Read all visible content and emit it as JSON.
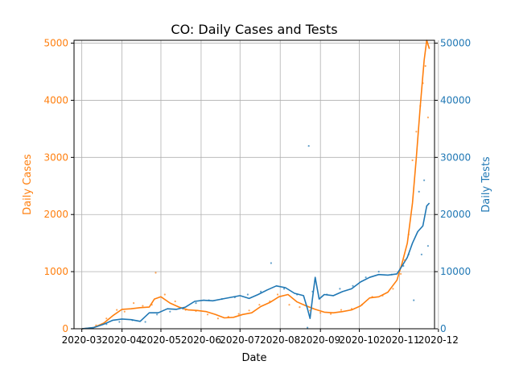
{
  "chart_data": {
    "type": "line",
    "title": "CO: Daily Cases and Tests",
    "xlabel": "Date",
    "ylabel_left": "Daily Cases",
    "ylabel_right": "Daily Tests",
    "x_ticks": [
      "2020-03",
      "2020-04",
      "2020-05",
      "2020-06",
      "2020-07",
      "2020-08",
      "2020-09",
      "2020-10",
      "2020-11",
      "2020-12"
    ],
    "xlim": [
      "2020-02-24",
      "2020-11-28"
    ],
    "ylim_left": [
      0,
      5050
    ],
    "ylim_right": [
      0,
      50500
    ],
    "y_ticks_left": [
      0,
      1000,
      2000,
      3000,
      4000,
      5000
    ],
    "y_ticks_right": [
      0,
      10000,
      20000,
      30000,
      40000,
      50000
    ],
    "grid": true,
    "colors": {
      "cases": "#ff7f0e",
      "tests": "#1f77b4"
    },
    "series": [
      {
        "role": "cases-smoothed",
        "axis": "left",
        "x": [
          "2020-03-01",
          "2020-03-10",
          "2020-03-18",
          "2020-03-25",
          "2020-04-01",
          "2020-04-08",
          "2020-04-15",
          "2020-04-22",
          "2020-04-26",
          "2020-05-01",
          "2020-05-08",
          "2020-05-15",
          "2020-05-22",
          "2020-05-29",
          "2020-06-05",
          "2020-06-12",
          "2020-06-19",
          "2020-06-26",
          "2020-07-03",
          "2020-07-10",
          "2020-07-17",
          "2020-07-24",
          "2020-07-31",
          "2020-08-07",
          "2020-08-14",
          "2020-08-21",
          "2020-08-28",
          "2020-09-04",
          "2020-09-11",
          "2020-09-18",
          "2020-09-25",
          "2020-10-02",
          "2020-10-09",
          "2020-10-16",
          "2020-10-23",
          "2020-10-30",
          "2020-11-03",
          "2020-11-07",
          "2020-11-11",
          "2020-11-14",
          "2020-11-17",
          "2020-11-20",
          "2020-11-22",
          "2020-11-24"
        ],
        "y": [
          0,
          20,
          100,
          230,
          340,
          350,
          370,
          380,
          520,
          560,
          450,
          380,
          330,
          320,
          300,
          250,
          190,
          200,
          250,
          280,
          390,
          460,
          560,
          600,
          470,
          400,
          340,
          290,
          280,
          300,
          330,
          400,
          540,
          560,
          640,
          850,
          1150,
          1500,
          2200,
          3000,
          3900,
          4700,
          5050,
          4900
        ]
      },
      {
        "role": "tests-smoothed",
        "axis": "right",
        "x": [
          "2020-03-01",
          "2020-03-10",
          "2020-03-18",
          "2020-03-25",
          "2020-04-01",
          "2020-04-08",
          "2020-04-15",
          "2020-04-22",
          "2020-04-29",
          "2020-05-06",
          "2020-05-13",
          "2020-05-20",
          "2020-05-27",
          "2020-06-03",
          "2020-06-10",
          "2020-06-17",
          "2020-06-24",
          "2020-07-01",
          "2020-07-08",
          "2020-07-15",
          "2020-07-22",
          "2020-07-29",
          "2020-08-05",
          "2020-08-12",
          "2020-08-19",
          "2020-08-22",
          "2020-08-24",
          "2020-08-26",
          "2020-08-28",
          "2020-08-31",
          "2020-09-04",
          "2020-09-11",
          "2020-09-18",
          "2020-09-25",
          "2020-10-02",
          "2020-10-09",
          "2020-10-16",
          "2020-10-23",
          "2020-10-30",
          "2020-11-03",
          "2020-11-07",
          "2020-11-11",
          "2020-11-15",
          "2020-11-19",
          "2020-11-22",
          "2020-11-24"
        ],
        "y": [
          0,
          200,
          800,
          1500,
          1700,
          1600,
          1300,
          2800,
          2800,
          3500,
          3400,
          3800,
          4800,
          5000,
          4900,
          5200,
          5500,
          5800,
          5300,
          6000,
          6800,
          7500,
          7200,
          6200,
          5800,
          3500,
          1800,
          5500,
          9000,
          5200,
          6000,
          5800,
          6500,
          7000,
          8200,
          9000,
          9500,
          9400,
          9600,
          11000,
          12500,
          15000,
          17000,
          18000,
          21500,
          22000
        ]
      },
      {
        "role": "cases-daily",
        "axis": "left",
        "x": [
          "2020-03-12",
          "2020-03-20",
          "2020-03-28",
          "2020-04-03",
          "2020-04-10",
          "2020-04-17",
          "2020-04-24",
          "2020-04-27",
          "2020-05-04",
          "2020-05-12",
          "2020-05-20",
          "2020-05-28",
          "2020-06-06",
          "2020-06-14",
          "2020-06-22",
          "2020-06-30",
          "2020-07-08",
          "2020-07-16",
          "2020-07-24",
          "2020-07-30",
          "2020-08-08",
          "2020-08-16",
          "2020-08-24",
          "2020-09-01",
          "2020-09-09",
          "2020-09-17",
          "2020-09-25",
          "2020-10-03",
          "2020-10-11",
          "2020-10-19",
          "2020-10-27",
          "2020-11-02",
          "2020-11-05",
          "2020-11-08",
          "2020-11-11",
          "2020-11-14",
          "2020-11-17",
          "2020-11-19",
          "2020-11-21",
          "2020-11-23"
        ],
        "y": [
          60,
          180,
          330,
          300,
          450,
          400,
          420,
          980,
          600,
          480,
          330,
          310,
          250,
          180,
          210,
          260,
          320,
          420,
          480,
          600,
          420,
          380,
          320,
          280,
          260,
          330,
          350,
          420,
          560,
          580,
          700,
          960,
          1200,
          1650,
          2950,
          3450,
          3900,
          4300,
          4600,
          3700
        ]
      },
      {
        "role": "tests-daily",
        "axis": "right",
        "x": [
          "2020-03-20",
          "2020-03-30",
          "2020-04-09",
          "2020-04-19",
          "2020-04-28",
          "2020-05-08",
          "2020-05-18",
          "2020-05-28",
          "2020-06-07",
          "2020-06-17",
          "2020-06-27",
          "2020-07-07",
          "2020-07-17",
          "2020-07-25",
          "2020-08-04",
          "2020-08-14",
          "2020-08-22",
          "2020-08-23",
          "2020-08-26",
          "2020-09-06",
          "2020-09-16",
          "2020-09-26",
          "2020-10-06",
          "2020-10-16",
          "2020-10-26",
          "2020-11-04",
          "2020-11-08",
          "2020-11-12",
          "2020-11-16",
          "2020-11-18",
          "2020-11-20",
          "2020-11-23"
        ],
        "y": [
          800,
          1200,
          1500,
          1200,
          2500,
          3000,
          3500,
          4500,
          5000,
          5200,
          5500,
          6000,
          6500,
          11500,
          7000,
          6000,
          200,
          32000,
          6500,
          6000,
          7000,
          7500,
          9000,
          10000,
          9500,
          11000,
          13000,
          5000,
          24000,
          13000,
          26000,
          14500
        ]
      }
    ]
  }
}
